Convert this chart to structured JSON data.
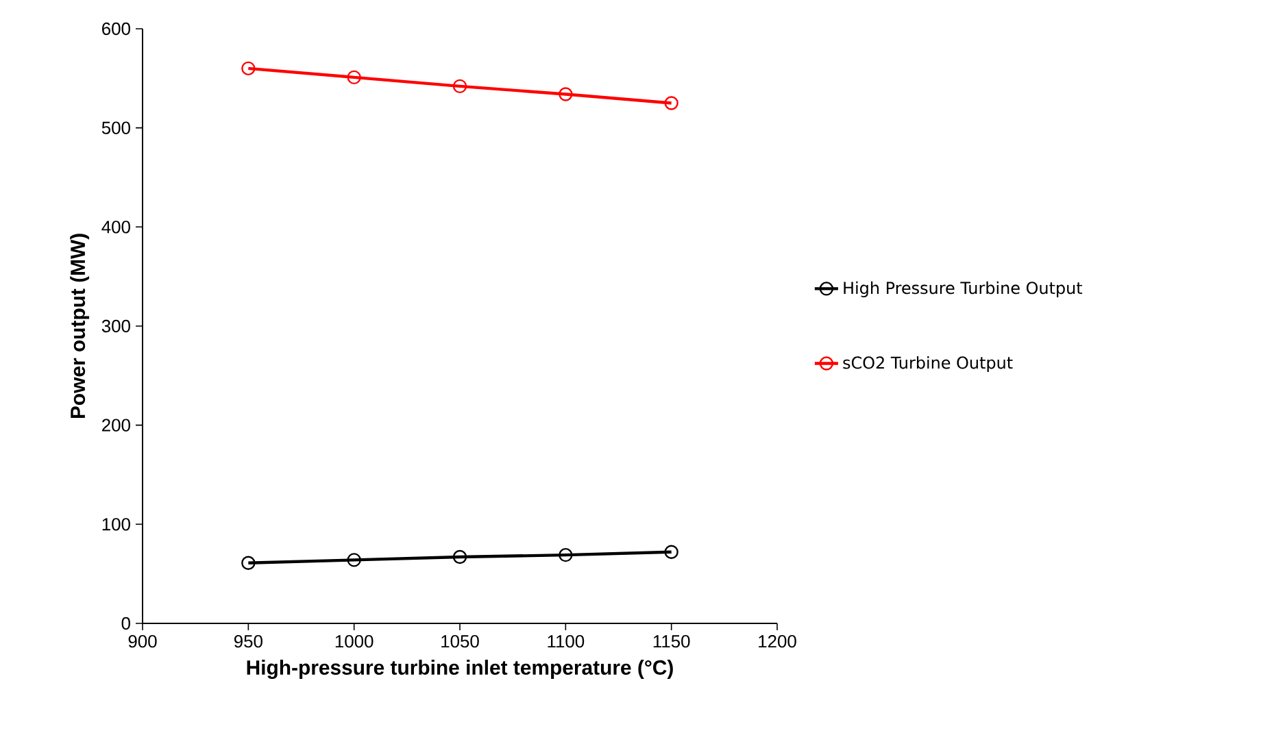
{
  "chart_data": {
    "type": "line",
    "xlabel": "High-pressure turbine inlet temperature (°C)",
    "ylabel": "Power output (MW)",
    "x": [
      950,
      1000,
      1050,
      1100,
      1150
    ],
    "series": [
      {
        "name": "High Pressure Turbine Output",
        "color": "#000000",
        "values": [
          61,
          64,
          67,
          69,
          72
        ]
      },
      {
        "name": "sCO2 Turbine Output",
        "color": "#ff0000",
        "values": [
          560,
          551,
          542,
          534,
          525
        ]
      }
    ],
    "xlim": [
      900,
      1200
    ],
    "xticks": [
      900,
      950,
      1000,
      1050,
      1100,
      1150,
      1200
    ],
    "ylim": [
      0,
      600
    ],
    "yticks": [
      0,
      100,
      200,
      300,
      400,
      500,
      600
    ],
    "grid": false,
    "legend": "right",
    "marker": "circle",
    "line_style": "solid"
  }
}
